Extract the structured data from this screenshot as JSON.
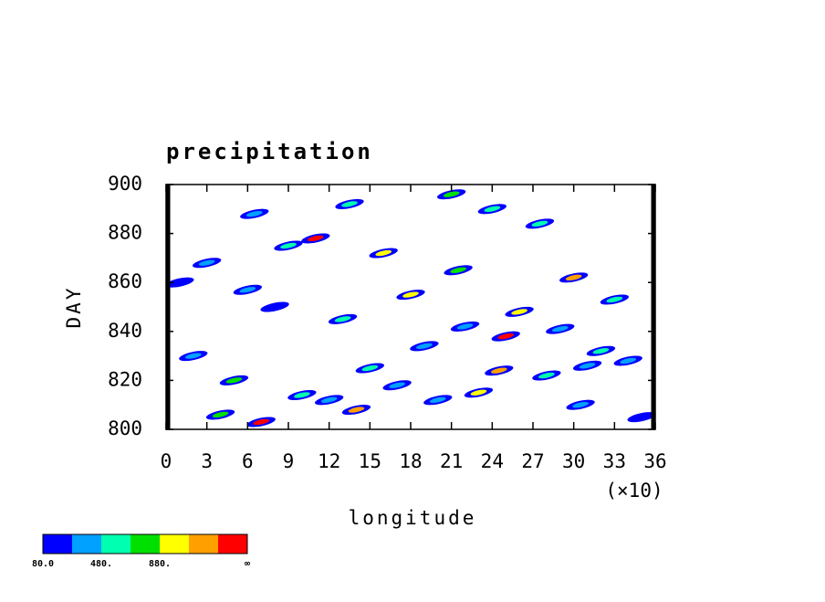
{
  "chart_data": {
    "type": "hovmoller",
    "title": "precipitation",
    "xlabel": "longitude",
    "ylabel": "DAY",
    "x_multiplier_label": "(×10)",
    "xlim": [
      0,
      36
    ],
    "xticks": [
      0,
      3,
      6,
      9,
      12,
      15,
      18,
      21,
      24,
      27,
      30,
      33,
      36
    ],
    "ylim": [
      800,
      900
    ],
    "yticks": [
      800,
      820,
      840,
      860,
      880,
      900
    ],
    "x": [
      11,
      16,
      21,
      24,
      27.5,
      30,
      3,
      6,
      8,
      13,
      18,
      22,
      25,
      32,
      34,
      2,
      5,
      10,
      14,
      17,
      20,
      23,
      28,
      31,
      35,
      4,
      7,
      12,
      15,
      19,
      26,
      29,
      33,
      1,
      9,
      21.5,
      24.5,
      30.5,
      6.5,
      13.5
    ],
    "y": [
      878,
      872,
      896,
      890,
      884,
      862,
      868,
      857,
      850,
      845,
      855,
      842,
      838,
      832,
      828,
      830,
      820,
      814,
      808,
      818,
      812,
      815,
      822,
      826,
      805,
      806,
      803,
      812,
      825,
      834,
      848,
      841,
      853,
      860,
      875,
      865,
      824,
      810,
      888,
      892
    ],
    "values": [
      1300,
      900,
      700,
      600,
      500,
      1250,
      300,
      400,
      200,
      500,
      900,
      300,
      1300,
      600,
      400,
      300,
      700,
      500,
      1100,
      300,
      400,
      900,
      600,
      300,
      200,
      700,
      1300,
      300,
      500,
      400,
      1000,
      300,
      600,
      200,
      500,
      700,
      1200,
      400,
      300,
      500
    ],
    "colorbar": {
      "colors": [
        "#0000ff",
        "#00a0ff",
        "#00ffb0",
        "#00e000",
        "#ffff00",
        "#ffa000",
        "#ff0000"
      ],
      "levels": [
        {
          "value": 80,
          "label": "80.0"
        },
        {
          "value": 480,
          "label": "480."
        },
        {
          "value": 880,
          "label": "880."
        }
      ],
      "step": 200,
      "end_label": "∞"
    }
  }
}
